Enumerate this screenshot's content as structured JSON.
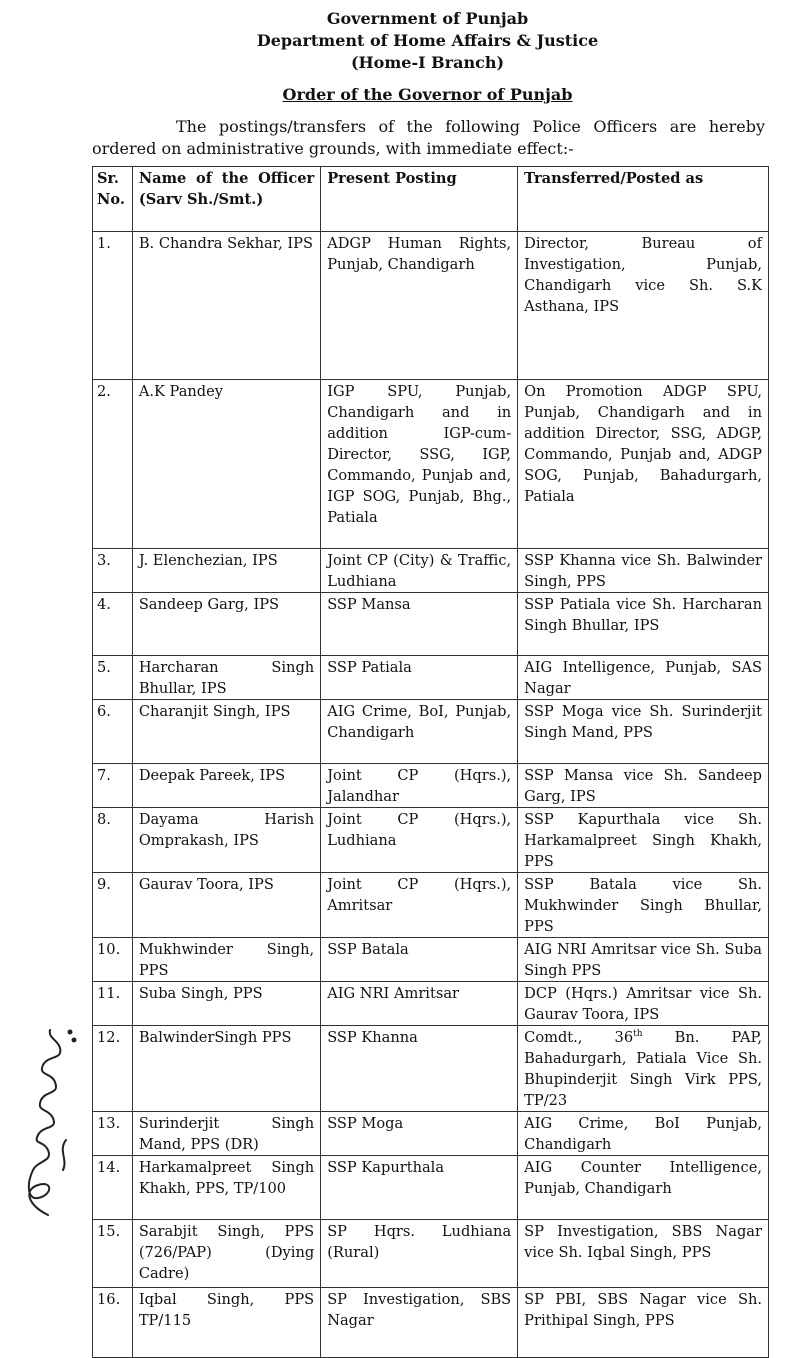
{
  "header": {
    "line1": "Government of Punjab",
    "line2": "Department of Home Affairs & Justice",
    "line3": "(Home-I Branch)",
    "order_title": "Order of the Governor of Punjab",
    "intro": "The postings/transfers of the following Police Officers are hereby ordered on administrative grounds, with immediate effect:-"
  },
  "table": {
    "columns": [
      "Sr. No.",
      "Name of the Officer (Sarv Sh./Smt.)",
      "Present Posting",
      "Transferred/Posted as"
    ],
    "rows": [
      {
        "sr": "1.",
        "name": "B. Chandra Sekhar, IPS",
        "present": "ADGP Human Rights, Punjab, Chandigarh",
        "transferred": "Director, Bureau of Investigation, Punjab, Chandigarh vice Sh. S.K Asthana, IPS"
      },
      {
        "sr": "2.",
        "name": "A.K Pandey",
        "present": "IGP SPU, Punjab, Chandigarh and in addition IGP-cum-Director, SSG, IGP, Commando, Punjab and, IGP SOG, Punjab, Bhg., Patiala",
        "transferred": "On Promotion ADGP SPU, Punjab, Chandigarh and in addition Director, SSG, ADGP, Commando, Punjab and, ADGP SOG, Punjab, Bahadurgarh, Patiala"
      },
      {
        "sr": "3.",
        "name": "J. Elenchezian, IPS",
        "present": "Joint CP (City) & Traffic, Ludhiana",
        "transferred": "SSP Khanna vice Sh. Balwinder Singh, PPS"
      },
      {
        "sr": "4.",
        "name": "Sandeep Garg, IPS",
        "present": "SSP Mansa",
        "transferred": "SSP Patiala vice Sh. Harcharan Singh Bhullar, IPS"
      },
      {
        "sr": "5.",
        "name": "Harcharan Singh Bhullar, IPS",
        "present": "SSP Patiala",
        "transferred": "AIG Intelligence, Punjab, SAS Nagar"
      },
      {
        "sr": "6.",
        "name": "Charanjit Singh, IPS",
        "present": "AIG Crime, BoI, Punjab, Chandigarh",
        "transferred": "SSP Moga vice Sh. Surinderjit Singh Mand, PPS"
      },
      {
        "sr": "7.",
        "name": "Deepak Pareek, IPS",
        "present": "Joint CP (Hqrs.), Jalandhar",
        "transferred": "SSP Mansa vice Sh. Sandeep Garg, IPS"
      },
      {
        "sr": "8.",
        "name": "Dayama Harish Omprakash, IPS",
        "present": "Joint CP (Hqrs.), Ludhiana",
        "transferred": "SSP Kapurthala vice Sh. Harkamalpreet Singh Khakh, PPS"
      },
      {
        "sr": "9.",
        "name": "Gaurav Toora, IPS",
        "present": "Joint CP (Hqrs.), Amritsar",
        "transferred": "SSP Batala vice Sh. Mukhwinder Singh Bhullar, PPS"
      },
      {
        "sr": "10.",
        "name": "Mukhwinder Singh, PPS",
        "present": "SSP Batala",
        "transferred": "AIG NRI Amritsar vice Sh. Suba Singh PPS"
      },
      {
        "sr": "11.",
        "name": "Suba Singh, PPS",
        "present": "AIG NRI Amritsar",
        "transferred": "DCP (Hqrs.) Amritsar vice Sh. Gaurav Toora, IPS"
      },
      {
        "sr": "12.",
        "name": "BalwinderSingh PPS",
        "present": "SSP Khanna",
        "transferred_pre": "Comdt., 36",
        "transferred_sup": "th",
        "transferred": " Bn. PAP, Bahadurgarh, Patiala Vice Sh. Bhupinderjit Singh Virk PPS, TP/23"
      },
      {
        "sr": "13.",
        "name": "Surinderjit Singh Mand, PPS (DR)",
        "present": "SSP Moga",
        "transferred": "AIG Crime, BoI Punjab, Chandigarh"
      },
      {
        "sr": "14.",
        "name": "Harkamalpreet Singh Khakh, PPS, TP/100",
        "present": "SSP Kapurthala",
        "transferred": "AIG Counter Intelligence, Punjab, Chandigarh"
      },
      {
        "sr": "15.",
        "name": "Sarabjit Singh, PPS (726/PAP) (Dying Cadre)",
        "present": "SP Hqrs. Ludhiana (Rural)",
        "transferred": "SP Investigation, SBS Nagar vice Sh. Iqbal Singh, PPS"
      },
      {
        "sr": "16.",
        "name": "Iqbal Singh, PPS TP/115",
        "present": "SP Investigation, SBS Nagar",
        "transferred": "SP PBI, SBS Nagar vice Sh. Prithipal Singh, PPS"
      }
    ]
  }
}
